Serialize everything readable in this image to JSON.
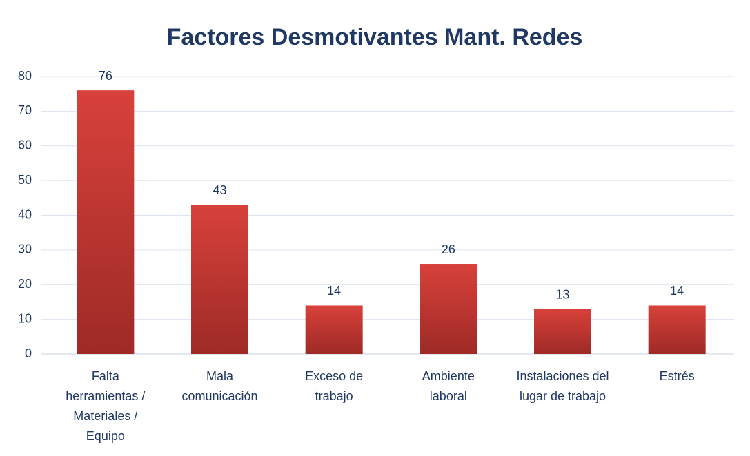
{
  "chart_data": {
    "type": "bar",
    "title": "Factores Desmotivantes Mant. Redes",
    "categories": [
      "Falta\nherramientas /\nMateriales /\nEquipo",
      "Mala\ncomunicación",
      "Exceso de\ntrabajo",
      "Ambiente\nlaboral",
      "Instalaciones del\nlugar de trabajo",
      "Estrés"
    ],
    "values": [
      76,
      43,
      14,
      26,
      13,
      14
    ],
    "color": "#c0392f",
    "ylim": [
      0,
      80
    ],
    "yticks": [
      0,
      10,
      20,
      30,
      40,
      50,
      60,
      70,
      80
    ],
    "grid": true
  }
}
